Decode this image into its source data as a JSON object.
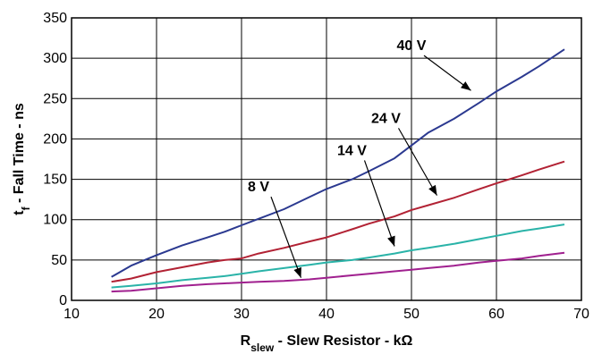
{
  "chart_data": {
    "type": "line",
    "xlabel": {
      "main": "R",
      "sub": "slew",
      "rest": " - Slew Resistor - kΩ"
    },
    "ylabel": {
      "main": "t",
      "sub": "f",
      "rest": " - Fall Time - ns"
    },
    "xlim": [
      10,
      70
    ],
    "ylim": [
      0,
      350
    ],
    "xticks": [
      "10",
      "20",
      "30",
      "40",
      "50",
      "60",
      "70"
    ],
    "yticks": [
      "0",
      "50",
      "100",
      "150",
      "200",
      "250",
      "300",
      "350"
    ],
    "grid": true,
    "series": [
      {
        "name": "40 V",
        "color": "#2b3990",
        "x": [
          14.7,
          17,
          20,
          23,
          26,
          28,
          30,
          32,
          35,
          38,
          40,
          43,
          45,
          48,
          50,
          52,
          55,
          58,
          60,
          63,
          65,
          68
        ],
        "y": [
          29,
          43,
          56,
          68,
          78,
          85,
          93,
          101,
          113,
          128,
          138,
          150,
          160,
          176,
          192,
          208,
          225,
          245,
          259,
          277,
          290,
          311
        ]
      },
      {
        "name": "24 V",
        "color": "#b22234",
        "x": [
          14.7,
          17,
          20,
          23,
          26,
          28,
          30,
          32,
          35,
          38,
          40,
          43,
          45,
          48,
          50,
          52,
          55,
          58,
          60,
          63,
          65,
          68
        ],
        "y": [
          23,
          27,
          35,
          41,
          47,
          50,
          52,
          58,
          65,
          73,
          78,
          88,
          95,
          104,
          112,
          118,
          127,
          138,
          145,
          155,
          162,
          172
        ]
      },
      {
        "name": "14 V",
        "color": "#2ab3a8",
        "x": [
          14.7,
          17,
          20,
          23,
          26,
          28,
          30,
          32,
          35,
          38,
          40,
          43,
          45,
          48,
          50,
          52,
          55,
          58,
          60,
          63,
          65,
          68
        ],
        "y": [
          16,
          18,
          21,
          25,
          28,
          30,
          33,
          36,
          40,
          44,
          47,
          50,
          53,
          58,
          62,
          65,
          70,
          76,
          80,
          86,
          89,
          94
        ]
      },
      {
        "name": "8 V",
        "color": "#a0208f",
        "x": [
          14.7,
          17,
          20,
          23,
          26,
          28,
          30,
          32,
          35,
          38,
          40,
          43,
          45,
          48,
          50,
          52,
          55,
          58,
          60,
          63,
          65,
          68
        ],
        "y": [
          11,
          12,
          15,
          18,
          20,
          21,
          22,
          23,
          24,
          26,
          28,
          31,
          33,
          36,
          38,
          40,
          43,
          47,
          49,
          52,
          55,
          59
        ]
      }
    ],
    "annotations": [
      {
        "text": "40 V",
        "label_at": [
          50,
          310
        ],
        "arrow_to": [
          57,
          260
        ]
      },
      {
        "text": "24 V",
        "label_at": [
          47,
          220
        ],
        "arrow_to": [
          53,
          130
        ]
      },
      {
        "text": "14 V",
        "label_at": [
          43,
          180
        ],
        "arrow_to": [
          48,
          67
        ]
      },
      {
        "text": "8 V",
        "label_at": [
          32,
          135
        ],
        "arrow_to": [
          37,
          28
        ]
      }
    ]
  }
}
